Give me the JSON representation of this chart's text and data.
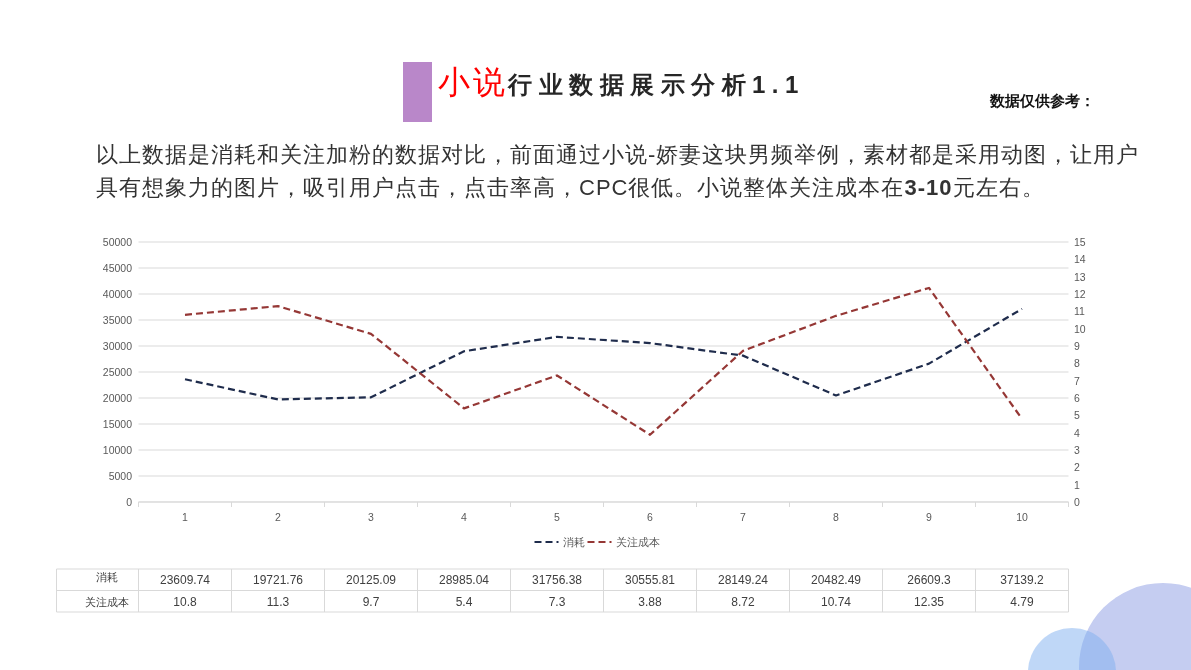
{
  "chart_data": {
    "type": "line",
    "title": "**小说**行业数据展示分析1.1",
    "subtitle": "以上数据是消耗和关注加粉的数据对比，前面通过小说-娇妻这块男频举例，素材都是采用动图，让用户具有想象力的图片，吸引用户点击，点击率高，CPC很低。小说整体关注成本在**3-10**元左右。",
    "annotations": [
      "数据仅供参考："
    ],
    "categories": [
      "1",
      "2",
      "3",
      "4",
      "5",
      "6",
      "7",
      "8",
      "9",
      "10"
    ],
    "series": [
      {
        "name": "消耗",
        "color": "#1f2c4c",
        "values": [
          23609.74,
          19721.76,
          20125.09,
          28985.04,
          31756.38,
          30555.81,
          28149.24,
          20482.49,
          26609.3,
          37139.2
        ],
        "value_labels": [
          "23609.74",
          "19721.76",
          "20125.09",
          "28985.04",
          "31756.38",
          "30555.81",
          "28149.24",
          "20482.49",
          "26609.3",
          "37139.2"
        ]
      },
      {
        "name": "关注成本",
        "color": "#953735",
        "axis": "y2",
        "values": [
          10.8,
          11.3,
          9.7,
          5.4,
          7.3,
          3.88,
          8.72,
          10.74,
          12.35,
          4.79
        ],
        "value_labels": [
          "10.8",
          "11.3",
          "9.7",
          "5.4",
          "7.3",
          "3.88",
          "8.72",
          "10.74",
          "12.35",
          "4.79"
        ]
      }
    ],
    "ylim": [
      0,
      50000
    ],
    "yticks": [
      0,
      5000,
      10000,
      15000,
      20000,
      25000,
      30000,
      35000,
      40000,
      45000,
      50000
    ],
    "y2lim": [
      0,
      15
    ],
    "y2ticks": [
      0,
      1,
      2,
      3,
      4,
      5,
      6,
      7,
      8,
      9,
      10,
      11,
      12,
      13,
      14,
      15
    ],
    "grid": "y",
    "legend": "bottom",
    "line_style": "dashed"
  }
}
